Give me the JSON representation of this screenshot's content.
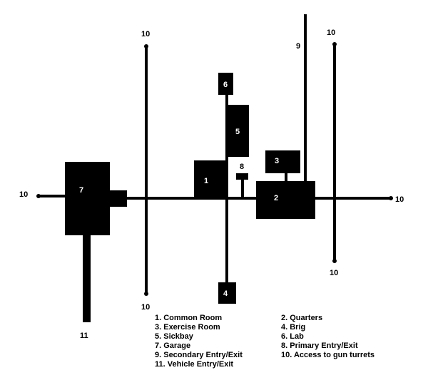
{
  "colors": {
    "structure": "#000000",
    "background": "#ffffff",
    "room_label": "#ffffff"
  },
  "rooms": {
    "r1": "1",
    "r2": "2",
    "r3": "3",
    "r4": "4",
    "r5": "5",
    "r6": "6",
    "r7": "7",
    "r8": "8"
  },
  "endpoints": {
    "turret_left": "10",
    "turret_top_left": "10",
    "turret_bottom_left": "10",
    "turret_top_right": "10",
    "turret_bottom_right": "10",
    "turret_right": "10",
    "secondary_entry": "9",
    "vehicle_entry": "11"
  },
  "legend": {
    "left": [
      "1. Common Room",
      "3. Exercise Room",
      "5. Sickbay",
      "7. Garage",
      "9. Secondary Entry/Exit",
      "11. Vehicle Entry/Exit"
    ],
    "right": [
      "2. Quarters",
      "4. Brig",
      "6. Lab",
      "8. Primary Entry/Exit",
      "10. Access to gun turrets"
    ]
  }
}
